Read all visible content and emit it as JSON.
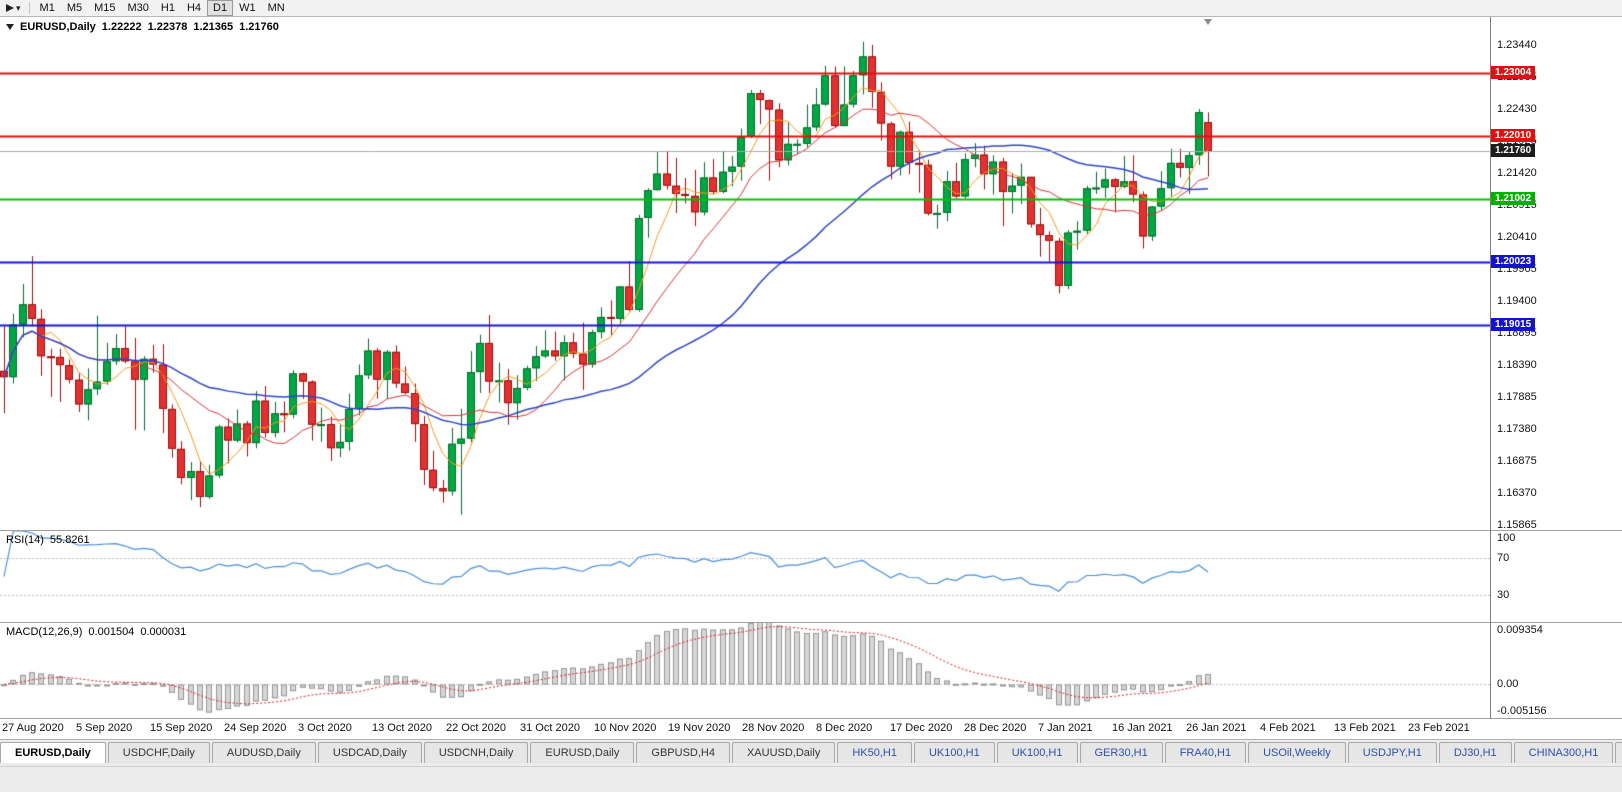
{
  "toolbar": {
    "timeframes": [
      "M1",
      "M5",
      "M15",
      "M30",
      "H1",
      "H4",
      "D1",
      "W1",
      "MN"
    ],
    "active_timeframe": "D1"
  },
  "chart_header": {
    "symbol": "EURUSD,Daily",
    "open": "1.22222",
    "high": "1.22378",
    "low": "1.21365",
    "close": "1.21760"
  },
  "rsi_panel": {
    "name": "RSI(14)",
    "value": "55.8261",
    "axis_labels": [
      100,
      70,
      30
    ]
  },
  "macd_panel": {
    "name": "MACD(12,26,9)",
    "main_value": "0.001504",
    "signal_value": "0.000031",
    "axis_top": "0.009354",
    "axis_zero": "0.00",
    "axis_bottom": "-0.005156"
  },
  "tabs": [
    {
      "label": "EURUSD,Daily",
      "active": true,
      "style": "dark"
    },
    {
      "label": "USDCHF,Daily",
      "active": false,
      "style": "dark"
    },
    {
      "label": "AUDUSD,Daily",
      "active": false,
      "style": "dark"
    },
    {
      "label": "USDCAD,Daily",
      "active": false,
      "style": "dark"
    },
    {
      "label": "USDCNH,Daily",
      "active": false,
      "style": "dark"
    },
    {
      "label": "EURUSD,Daily",
      "active": false,
      "style": "dark"
    },
    {
      "label": "GBPUSD,H4",
      "active": false,
      "style": "dark"
    },
    {
      "label": "XAUUSD,Daily",
      "active": false,
      "style": "dark"
    },
    {
      "label": "HK50,H1",
      "active": false,
      "style": "blue"
    },
    {
      "label": "UK100,H1",
      "active": false,
      "style": "blue"
    },
    {
      "label": "UK100,H1",
      "active": false,
      "style": "blue"
    },
    {
      "label": "GER30,H1",
      "active": false,
      "style": "blue"
    },
    {
      "label": "FRA40,H1",
      "active": false,
      "style": "blue"
    },
    {
      "label": "USOil,Weekly",
      "active": false,
      "style": "blue"
    },
    {
      "label": "USDJPY,H1",
      "active": false,
      "style": "blue"
    },
    {
      "label": "DJ30,H1",
      "active": false,
      "style": "blue"
    },
    {
      "label": "CHINA300,H1",
      "active": false,
      "style": "blue"
    },
    {
      "label": "U",
      "active": false,
      "style": "blue"
    }
  ],
  "chart_data": {
    "type": "candlestick",
    "title": "EURUSD,Daily",
    "price_range": [
      1.1579,
      1.2388
    ],
    "y_tick_labels": [
      "1.23440",
      "1.22935",
      "1.22430",
      "1.21925",
      "1.21420",
      "1.20915",
      "1.20410",
      "1.19905",
      "1.19400",
      "1.18895",
      "1.18390",
      "1.17885",
      "1.17380",
      "1.16875",
      "1.16370",
      "1.15865"
    ],
    "x_labels": [
      "27 Aug 2020",
      "5 Sep 2020",
      "15 Sep 2020",
      "24 Sep 2020",
      "3 Oct 2020",
      "13 Oct 2020",
      "22 Oct 2020",
      "31 Oct 2020",
      "10 Nov 2020",
      "19 Nov 2020",
      "28 Nov 2020",
      "8 Dec 2020",
      "17 Dec 2020",
      "28 Dec 2020",
      "7 Jan 2021",
      "16 Jan 2021",
      "26 Jan 2021",
      "4 Feb 2021",
      "13 Feb 2021",
      "23 Feb 2021"
    ],
    "price_tags": [
      {
        "label": "1.23004",
        "price": 1.23004,
        "color": "#dd1111",
        "role": "resistance-line"
      },
      {
        "label": "1.22010",
        "price": 1.2201,
        "color": "#dd1111",
        "role": "resistance-line"
      },
      {
        "label": "1.21760",
        "price": 1.2176,
        "color": "#1c1c1c",
        "role": "current-price"
      },
      {
        "label": "1.21002",
        "price": 1.21002,
        "color": "#00b200",
        "role": "support-line"
      },
      {
        "label": "1.20023",
        "price": 1.20023,
        "color": "#1313cc",
        "role": "support-line"
      },
      {
        "label": "1.19015",
        "price": 1.19015,
        "color": "#1313cc",
        "role": "support-line"
      }
    ],
    "levels": [
      {
        "price": 1.23004,
        "color": "#e01010",
        "width": 2
      },
      {
        "price": 1.2201,
        "color": "#e01010",
        "width": 2
      },
      {
        "price": 1.21002,
        "color": "#00c000",
        "width": 2
      },
      {
        "price": 1.20023,
        "color": "#1515d5",
        "width": 2
      },
      {
        "price": 1.19015,
        "color": "#1515d5",
        "width": 2
      },
      {
        "price": 1.2176,
        "color": "#aaaaaa",
        "width": 1
      }
    ],
    "moving_averages": [
      {
        "name": "fast",
        "period": 5,
        "color": "#f59a1d",
        "width": 1
      },
      {
        "name": "medium",
        "period": 13,
        "color": "#d93434",
        "width": 1
      },
      {
        "name": "slow",
        "period": 34,
        "color": "#2f45c5",
        "width": 1.5
      }
    ],
    "colors": {
      "bull": "#00a843",
      "bull_border": "#076b2e",
      "bear": "#e53030",
      "bear_border": "#991111",
      "rsi_line": "#4a90d9",
      "indicator_level": "#bcbcbc",
      "macd_hist_fill": "#d6d6d6",
      "macd_hist_stroke": "#979797",
      "macd_signal": "#e02020"
    },
    "indicators": {
      "rsi": {
        "period": 14,
        "value": 55.8261,
        "levels": [
          30,
          70
        ],
        "range": [
          0,
          100
        ]
      },
      "macd": {
        "fast": 12,
        "slow": 26,
        "signal": 9,
        "range": [
          -0.005156,
          0.009354
        ]
      }
    },
    "candles": [
      [
        1.183,
        1.19,
        1.1763,
        1.182
      ],
      [
        1.182,
        1.192,
        1.181,
        1.1903
      ],
      [
        1.1903,
        1.1967,
        1.1883,
        1.1935
      ],
      [
        1.1935,
        1.2011,
        1.19,
        1.1912
      ],
      [
        1.1912,
        1.1927,
        1.1822,
        1.1853
      ],
      [
        1.1853,
        1.1865,
        1.1789,
        1.1852
      ],
      [
        1.1852,
        1.1865,
        1.1781,
        1.1839
      ],
      [
        1.1839,
        1.1848,
        1.181,
        1.1816
      ],
      [
        1.1816,
        1.1827,
        1.1765,
        1.1777
      ],
      [
        1.1777,
        1.1834,
        1.1752,
        1.1801
      ],
      [
        1.1801,
        1.1917,
        1.1792,
        1.1813
      ],
      [
        1.1813,
        1.1874,
        1.1808,
        1.1845
      ],
      [
        1.1845,
        1.1888,
        1.1839,
        1.1866
      ],
      [
        1.1866,
        1.19,
        1.1842,
        1.1845
      ],
      [
        1.1845,
        1.1882,
        1.1737,
        1.1816
      ],
      [
        1.1816,
        1.1853,
        1.1736,
        1.1849
      ],
      [
        1.1849,
        1.1871,
        1.1827,
        1.184
      ],
      [
        1.184,
        1.1872,
        1.1732,
        1.177
      ],
      [
        1.177,
        1.1777,
        1.1693,
        1.1707
      ],
      [
        1.1707,
        1.1719,
        1.1651,
        1.1661
      ],
      [
        1.1661,
        1.1686,
        1.1626,
        1.1672
      ],
      [
        1.1672,
        1.1688,
        1.1615,
        1.1631
      ],
      [
        1.1631,
        1.1682,
        1.1628,
        1.1665
      ],
      [
        1.1665,
        1.1745,
        1.1661,
        1.1742
      ],
      [
        1.1742,
        1.1755,
        1.1684,
        1.172
      ],
      [
        1.172,
        1.1769,
        1.1717,
        1.1747
      ],
      [
        1.1747,
        1.1751,
        1.1695,
        1.1716
      ],
      [
        1.1716,
        1.1798,
        1.1708,
        1.1783
      ],
      [
        1.1783,
        1.1806,
        1.1725,
        1.1732
      ],
      [
        1.1732,
        1.1781,
        1.1725,
        1.1763
      ],
      [
        1.1763,
        1.1782,
        1.1733,
        1.1761
      ],
      [
        1.1761,
        1.1831,
        1.1755,
        1.1826
      ],
      [
        1.1826,
        1.1827,
        1.1786,
        1.1813
      ],
      [
        1.1813,
        1.1815,
        1.172,
        1.1745
      ],
      [
        1.1745,
        1.1772,
        1.1718,
        1.1746
      ],
      [
        1.1746,
        1.1758,
        1.1688,
        1.1708
      ],
      [
        1.1708,
        1.1746,
        1.1694,
        1.1718
      ],
      [
        1.1718,
        1.1794,
        1.1704,
        1.177
      ],
      [
        1.177,
        1.184,
        1.176,
        1.1823
      ],
      [
        1.1823,
        1.1881,
        1.1817,
        1.1862
      ],
      [
        1.1862,
        1.1866,
        1.1786,
        1.1816
      ],
      [
        1.1816,
        1.1863,
        1.1786,
        1.186
      ],
      [
        1.186,
        1.187,
        1.1803,
        1.181
      ],
      [
        1.181,
        1.1837,
        1.1793,
        1.1795
      ],
      [
        1.1795,
        1.181,
        1.1718,
        1.1746
      ],
      [
        1.1746,
        1.1759,
        1.165,
        1.1674
      ],
      [
        1.1674,
        1.1704,
        1.164,
        1.1645
      ],
      [
        1.1645,
        1.1658,
        1.1622,
        1.164
      ],
      [
        1.164,
        1.174,
        1.1633,
        1.1715
      ],
      [
        1.1715,
        1.177,
        1.1603,
        1.1723
      ],
      [
        1.1723,
        1.1861,
        1.1717,
        1.1828
      ],
      [
        1.1828,
        1.1887,
        1.1795,
        1.1874
      ],
      [
        1.1874,
        1.1918,
        1.1795,
        1.1813
      ],
      [
        1.1813,
        1.1843,
        1.178,
        1.1815
      ],
      [
        1.1815,
        1.1833,
        1.1745,
        1.1779
      ],
      [
        1.1779,
        1.1823,
        1.1753,
        1.1803
      ],
      [
        1.1803,
        1.1838,
        1.1799,
        1.1834
      ],
      [
        1.1834,
        1.1869,
        1.1814,
        1.1853
      ],
      [
        1.1853,
        1.1894,
        1.185,
        1.1862
      ],
      [
        1.1862,
        1.1892,
        1.1846,
        1.1853
      ],
      [
        1.1853,
        1.1886,
        1.1815,
        1.1875
      ],
      [
        1.1875,
        1.189,
        1.185,
        1.1857
      ],
      [
        1.1857,
        1.1906,
        1.18,
        1.184
      ],
      [
        1.184,
        1.1895,
        1.1835,
        1.1891
      ],
      [
        1.1891,
        1.193,
        1.1881,
        1.1915
      ],
      [
        1.1915,
        1.1941,
        1.1886,
        1.1912
      ],
      [
        1.1912,
        1.1963,
        1.1903,
        1.1963
      ],
      [
        1.1963,
        1.2003,
        1.1924,
        1.1926
      ],
      [
        1.1926,
        1.2076,
        1.1923,
        1.2071
      ],
      [
        1.2071,
        1.2118,
        1.204,
        1.2115
      ],
      [
        1.2115,
        1.2175,
        1.2114,
        1.2141
      ],
      [
        1.2141,
        1.2177,
        1.2116,
        1.2122
      ],
      [
        1.2122,
        1.2166,
        1.2079,
        1.2109
      ],
      [
        1.2109,
        1.2134,
        1.2094,
        1.2106
      ],
      [
        1.2106,
        1.2147,
        1.2058,
        1.208
      ],
      [
        1.208,
        1.2159,
        1.2075,
        1.2135
      ],
      [
        1.2135,
        1.2164,
        1.2109,
        1.2112
      ],
      [
        1.2112,
        1.2177,
        1.211,
        1.2144
      ],
      [
        1.2144,
        1.2169,
        1.2121,
        1.2152
      ],
      [
        1.2152,
        1.2212,
        1.213,
        1.2199
      ],
      [
        1.2199,
        1.2273,
        1.2197,
        1.2268
      ],
      [
        1.2268,
        1.2273,
        1.2219,
        1.2257
      ],
      [
        1.2257,
        1.2258,
        1.213,
        1.2242
      ],
      [
        1.2242,
        1.2252,
        1.2151,
        1.2162
      ],
      [
        1.2162,
        1.2222,
        1.2154,
        1.2188
      ],
      [
        1.2188,
        1.2195,
        1.2172,
        1.2188
      ],
      [
        1.2188,
        1.225,
        1.2182,
        1.2214
      ],
      [
        1.2214,
        1.2276,
        1.2208,
        1.225
      ],
      [
        1.225,
        1.2311,
        1.2248,
        1.2296
      ],
      [
        1.2296,
        1.231,
        1.2213,
        1.2216
      ],
      [
        1.2216,
        1.231,
        1.2216,
        1.225
      ],
      [
        1.225,
        1.2303,
        1.2245,
        1.2296
      ],
      [
        1.2296,
        1.2349,
        1.2266,
        1.2326
      ],
      [
        1.2326,
        1.2344,
        1.2245,
        1.227
      ],
      [
        1.227,
        1.2285,
        1.2193,
        1.222
      ],
      [
        1.222,
        1.2223,
        1.2132,
        1.2152
      ],
      [
        1.2152,
        1.2209,
        1.2138,
        1.2207
      ],
      [
        1.2207,
        1.2223,
        1.214,
        1.2158
      ],
      [
        1.2158,
        1.2178,
        1.2111,
        1.2155
      ],
      [
        1.2155,
        1.2163,
        1.2075,
        1.2078
      ],
      [
        1.2078,
        1.2092,
        1.2054,
        1.2079
      ],
      [
        1.2079,
        1.2145,
        1.2066,
        1.2129
      ],
      [
        1.2129,
        1.2158,
        1.2102,
        1.2105
      ],
      [
        1.2105,
        1.2173,
        1.2102,
        1.2164
      ],
      [
        1.2164,
        1.2189,
        1.2151,
        1.2171
      ],
      [
        1.2171,
        1.2185,
        1.2116,
        1.214
      ],
      [
        1.214,
        1.217,
        1.2108,
        1.216
      ],
      [
        1.216,
        1.2166,
        1.2058,
        1.2112
      ],
      [
        1.2112,
        1.2142,
        1.2078,
        1.2122
      ],
      [
        1.2122,
        1.2157,
        1.2093,
        1.2136
      ],
      [
        1.2136,
        1.2136,
        1.2056,
        1.2061
      ],
      [
        1.2061,
        1.2087,
        1.201,
        1.2044
      ],
      [
        1.2044,
        1.205,
        1.2002,
        1.2035
      ],
      [
        1.2035,
        1.204,
        1.1952,
        1.1964
      ],
      [
        1.1964,
        1.2052,
        1.1959,
        1.2048
      ],
      [
        1.2048,
        1.2066,
        1.2021,
        1.2051
      ],
      [
        1.2051,
        1.2122,
        1.2046,
        1.2118
      ],
      [
        1.2118,
        1.2144,
        1.2109,
        1.2119
      ],
      [
        1.2119,
        1.2149,
        1.2103,
        1.2132
      ],
      [
        1.2132,
        1.2134,
        1.208,
        1.212
      ],
      [
        1.212,
        1.2169,
        1.2118,
        1.2129
      ],
      [
        1.2129,
        1.217,
        1.2096,
        1.2108
      ],
      [
        1.2108,
        1.2113,
        1.2023,
        1.2042
      ],
      [
        1.2042,
        1.209,
        1.2035,
        1.2089
      ],
      [
        1.2089,
        1.2145,
        1.2082,
        1.2118
      ],
      [
        1.2118,
        1.218,
        1.2105,
        1.2158
      ],
      [
        1.2158,
        1.218,
        1.2135,
        1.215
      ],
      [
        1.215,
        1.2175,
        1.2109,
        1.217
      ],
      [
        1.217,
        1.2243,
        1.2155,
        1.2238
      ],
      [
        1.22222,
        1.22378,
        1.21365,
        1.2176
      ]
    ]
  }
}
